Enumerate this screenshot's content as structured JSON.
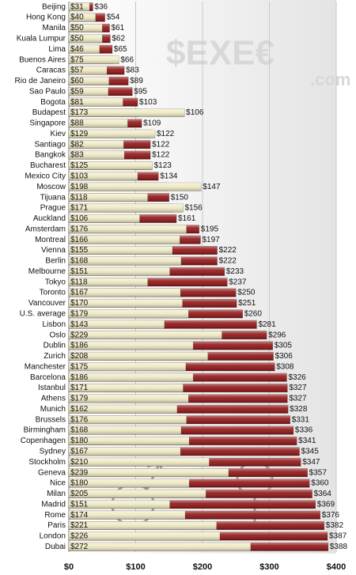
{
  "chart_data": {
    "type": "overlap-hbar",
    "watermark": [
      "$EXE€",
      ".com"
    ],
    "categories": [
      "Beijing",
      "Hong Kong",
      "Manila",
      "Kuala Lumpur",
      "Lima",
      "Buenos Aires",
      "Caracas",
      "Rio de Janeiro",
      "Sao Paulo",
      "Bogota",
      "Budapest",
      "Singapore",
      "Kiev",
      "Santiago",
      "Bangkok",
      "Bucharest",
      "Mexico City",
      "Moscow",
      "Tijuana",
      "Prague",
      "Auckland",
      "Amsterdam",
      "Montreal",
      "Vienna",
      "Berlin",
      "Melbourne",
      "Tokyo",
      "Toronto",
      "Vancouver",
      "U.S. average",
      "Lisbon",
      "Oslo",
      "Dublin",
      "Zurich",
      "Manchester",
      "Barcelona",
      "Istanbul",
      "Athens",
      "Munich",
      "Brussels",
      "Birmingham",
      "Copenhagen",
      "Sydney",
      "Stockholm",
      "Geneva",
      "Nice",
      "Milan",
      "Madrid",
      "Rome",
      "Paris",
      "London",
      "Dubai"
    ],
    "series": [
      {
        "color": "#8e1212",
        "values": [
          36,
          54,
          61,
          62,
          65,
          66,
          83,
          89,
          95,
          103,
          106,
          109,
          122,
          122,
          122,
          123,
          134,
          147,
          150,
          156,
          161,
          195,
          197,
          222,
          222,
          233,
          237,
          250,
          251,
          260,
          281,
          296,
          305,
          306,
          308,
          326,
          327,
          327,
          328,
          331,
          336,
          341,
          345,
          347,
          357,
          360,
          364,
          369,
          376,
          382,
          387,
          388
        ],
        "value_labels": [
          "$36",
          "$54",
          "$61",
          "$62",
          "$65",
          "$66",
          "$83",
          "$89",
          "$95",
          "$103",
          "$106",
          "$109",
          "$122",
          "$122",
          "$122",
          "$123",
          "$134",
          "$147",
          "$150",
          "$156",
          "$161",
          "$195",
          "$197",
          "$222",
          "$222",
          "$233",
          "$237",
          "$250",
          "$251",
          "$260",
          "$281",
          "$296",
          "$305",
          "$306",
          "$308",
          "$326",
          "$327",
          "$327",
          "$328",
          "$331",
          "$336",
          "$341",
          "$345",
          "$347",
          "$357",
          "$360",
          "$364",
          "$369",
          "$376",
          "$382",
          "$387",
          "$388"
        ]
      },
      {
        "color": "#f0eac4",
        "values": [
          31,
          40,
          50,
          50,
          46,
          75,
          57,
          60,
          59,
          81,
          173,
          88,
          129,
          82,
          83,
          125,
          103,
          198,
          118,
          171,
          106,
          176,
          166,
          155,
          168,
          151,
          118,
          167,
          170,
          179,
          143,
          229,
          186,
          208,
          175,
          186,
          171,
          179,
          162,
          176,
          168,
          180,
          167,
          210,
          239,
          180,
          205,
          151,
          174,
          221,
          226,
          272
        ],
        "value_labels": [
          "$31",
          "$40",
          "$50",
          "$50",
          "$46",
          "$75",
          "$57",
          "$60",
          "$59",
          "$81",
          "$173",
          "$88",
          "$129",
          "$82",
          "$83",
          "$125",
          "$103",
          "$198",
          "$118",
          "$171",
          "$106",
          "$176",
          "$166",
          "$155",
          "$168",
          "$151",
          "$118",
          "$167",
          "$170",
          "$179",
          "$143",
          "$229",
          "$186",
          "$208",
          "$175",
          "$186",
          "$171",
          "$179",
          "$162",
          "$176",
          "$168",
          "$180",
          "$167",
          "$210",
          "$239",
          "$180",
          "$205",
          "$151",
          "$174",
          "$221",
          "$226",
          "$272"
        ]
      }
    ],
    "xlim": [
      0,
      400
    ],
    "xticks": [
      {
        "value": 0,
        "label": "$0"
      },
      {
        "value": 100,
        "label": "$100"
      },
      {
        "value": 200,
        "label": "$200"
      },
      {
        "value": 300,
        "label": "$300"
      },
      {
        "value": 400,
        "label": "$400"
      }
    ],
    "grid": true
  }
}
